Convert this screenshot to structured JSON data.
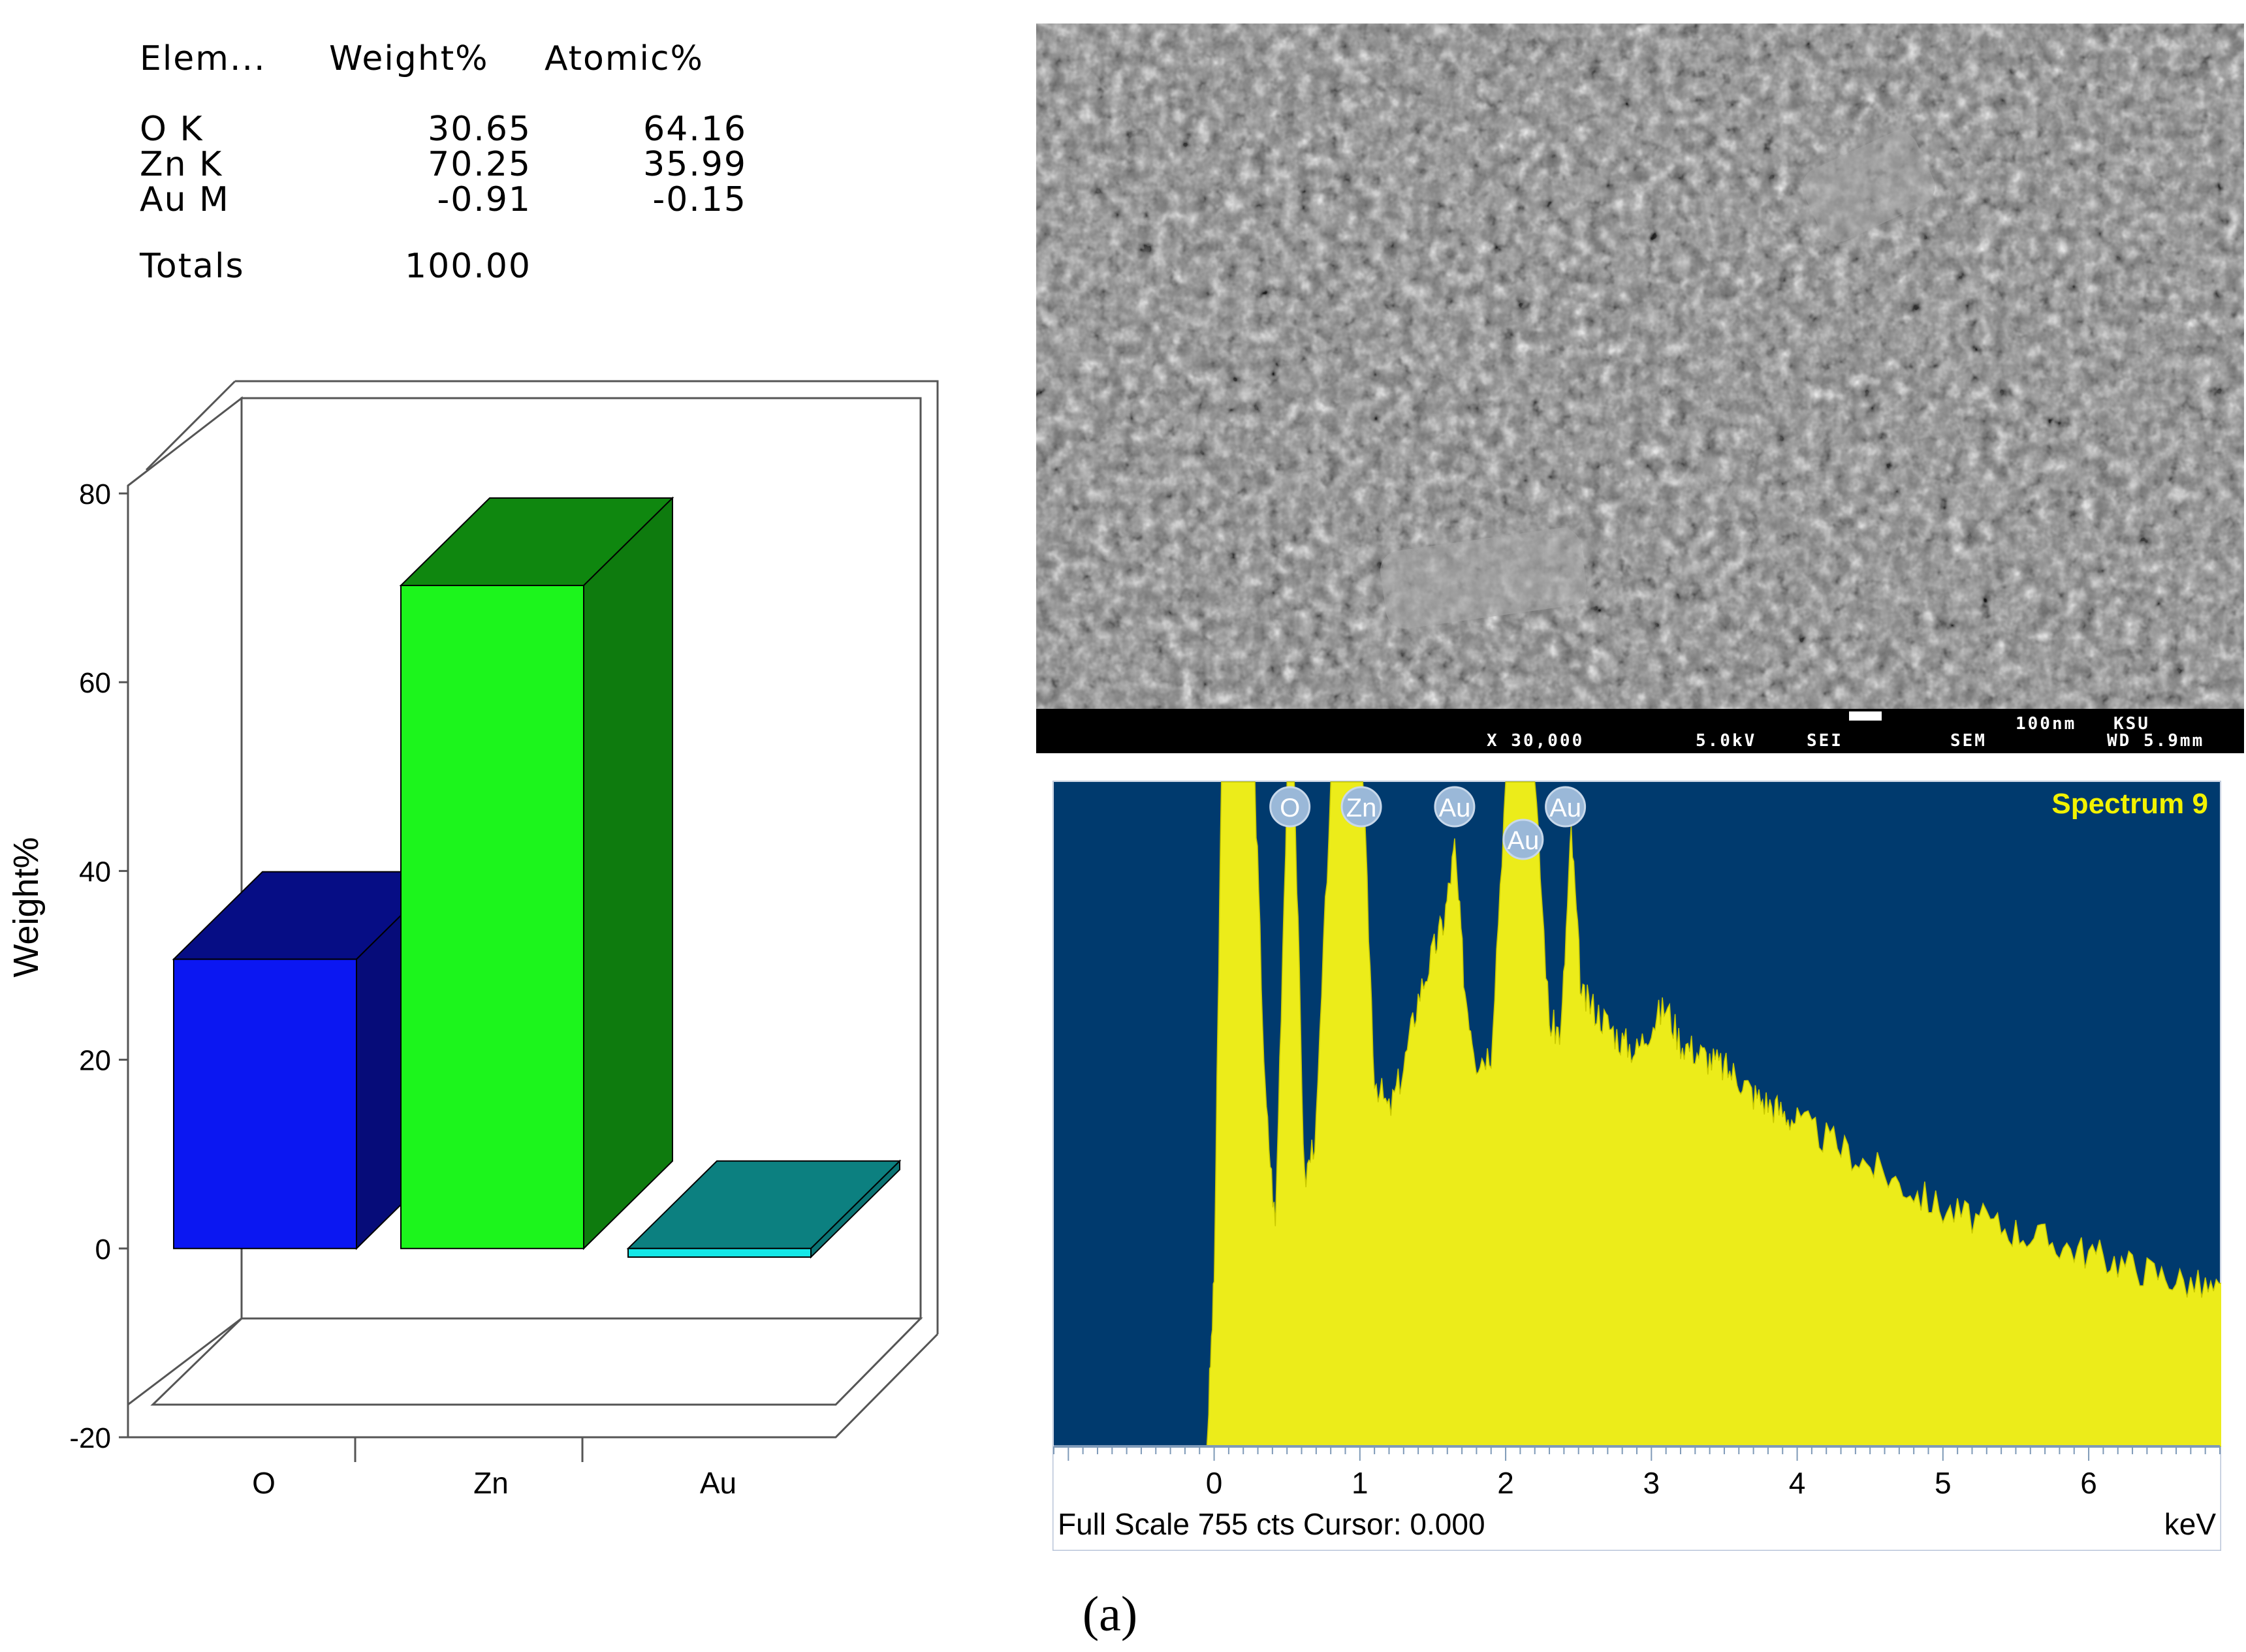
{
  "table": {
    "headers": [
      "Elem...",
      "Weight%",
      "Atomic%"
    ],
    "rows": [
      {
        "element": "O K",
        "weight": "30.65",
        "atomic": "64.16"
      },
      {
        "element": "Zn K",
        "weight": "70.25",
        "atomic": "35.99"
      },
      {
        "element": "Au M",
        "weight": "-0.91",
        "atomic": "-0.15"
      }
    ],
    "totals_label": "Totals",
    "totals_value": "100.00"
  },
  "chart_data": [
    {
      "type": "bar",
      "title": "",
      "xlabel": "",
      "ylabel": "Weight%",
      "categories": [
        "O",
        "Zn",
        "Au"
      ],
      "values": [
        30.65,
        70.25,
        -0.91
      ],
      "ylim": [
        -20,
        80
      ],
      "yticks": [
        -20,
        0,
        20,
        40,
        60,
        80
      ],
      "colors": {
        "O": "#0b17f2",
        "Zn": "#1cf51c",
        "Au": "#15e8e8"
      },
      "grid": false
    },
    {
      "type": "area",
      "title": "Spectrum 9",
      "xlabel": "keV",
      "footer": "Full Scale 755 cts Cursor: 0.000",
      "xlim": [
        -1.1,
        6.9
      ],
      "xticks": [
        0,
        1,
        2,
        3,
        4,
        5,
        6
      ],
      "ylim": [
        0,
        755
      ],
      "peak_labels": [
        {
          "label": "O",
          "x": 0.52
        },
        {
          "label": "Zn",
          "x": 1.01
        },
        {
          "label": "Au",
          "x": 1.65
        },
        {
          "label": "Au",
          "x": 2.12
        },
        {
          "label": "Au",
          "x": 2.41
        }
      ],
      "x": [
        -1.1,
        -0.05,
        0.0,
        0.05,
        0.1,
        0.2,
        0.28,
        0.35,
        0.42,
        0.5,
        0.55,
        0.62,
        0.7,
        0.8,
        0.88,
        0.95,
        1.02,
        1.1,
        1.2,
        1.3,
        1.4,
        1.5,
        1.58,
        1.65,
        1.72,
        1.8,
        1.9,
        2.0,
        2.05,
        2.12,
        2.2,
        2.3,
        2.38,
        2.45,
        2.52,
        2.6,
        2.7,
        2.8,
        2.9,
        3.0,
        3.1,
        3.2,
        3.3,
        3.4,
        3.5,
        3.6,
        3.7,
        3.8,
        3.9,
        4.0,
        4.2,
        4.4,
        4.6,
        4.8,
        5.0,
        5.2,
        5.4,
        5.6,
        5.8,
        6.0,
        6.2,
        6.4,
        6.6,
        6.8,
        6.95
      ],
      "y": [
        0,
        0,
        190,
        755,
        755,
        755,
        755,
        400,
        250,
        755,
        755,
        300,
        360,
        755,
        755,
        755,
        755,
        420,
        380,
        430,
        510,
        560,
        600,
        680,
        520,
        440,
        450,
        755,
        755,
        755,
        755,
        480,
        470,
        700,
        510,
        500,
        480,
        460,
        450,
        480,
        500,
        460,
        450,
        440,
        430,
        420,
        400,
        390,
        380,
        370,
        350,
        330,
        310,
        290,
        270,
        260,
        250,
        240,
        230,
        220,
        210,
        200,
        190,
        180,
        170
      ]
    }
  ],
  "sem": {
    "magnification": "X 30,000",
    "voltage": "5.0kV",
    "mode": "SEI",
    "instrument": "SEM",
    "scale": "100nm",
    "org": "KSU",
    "wd": "WD 5.9mm"
  },
  "caption": "(a)"
}
